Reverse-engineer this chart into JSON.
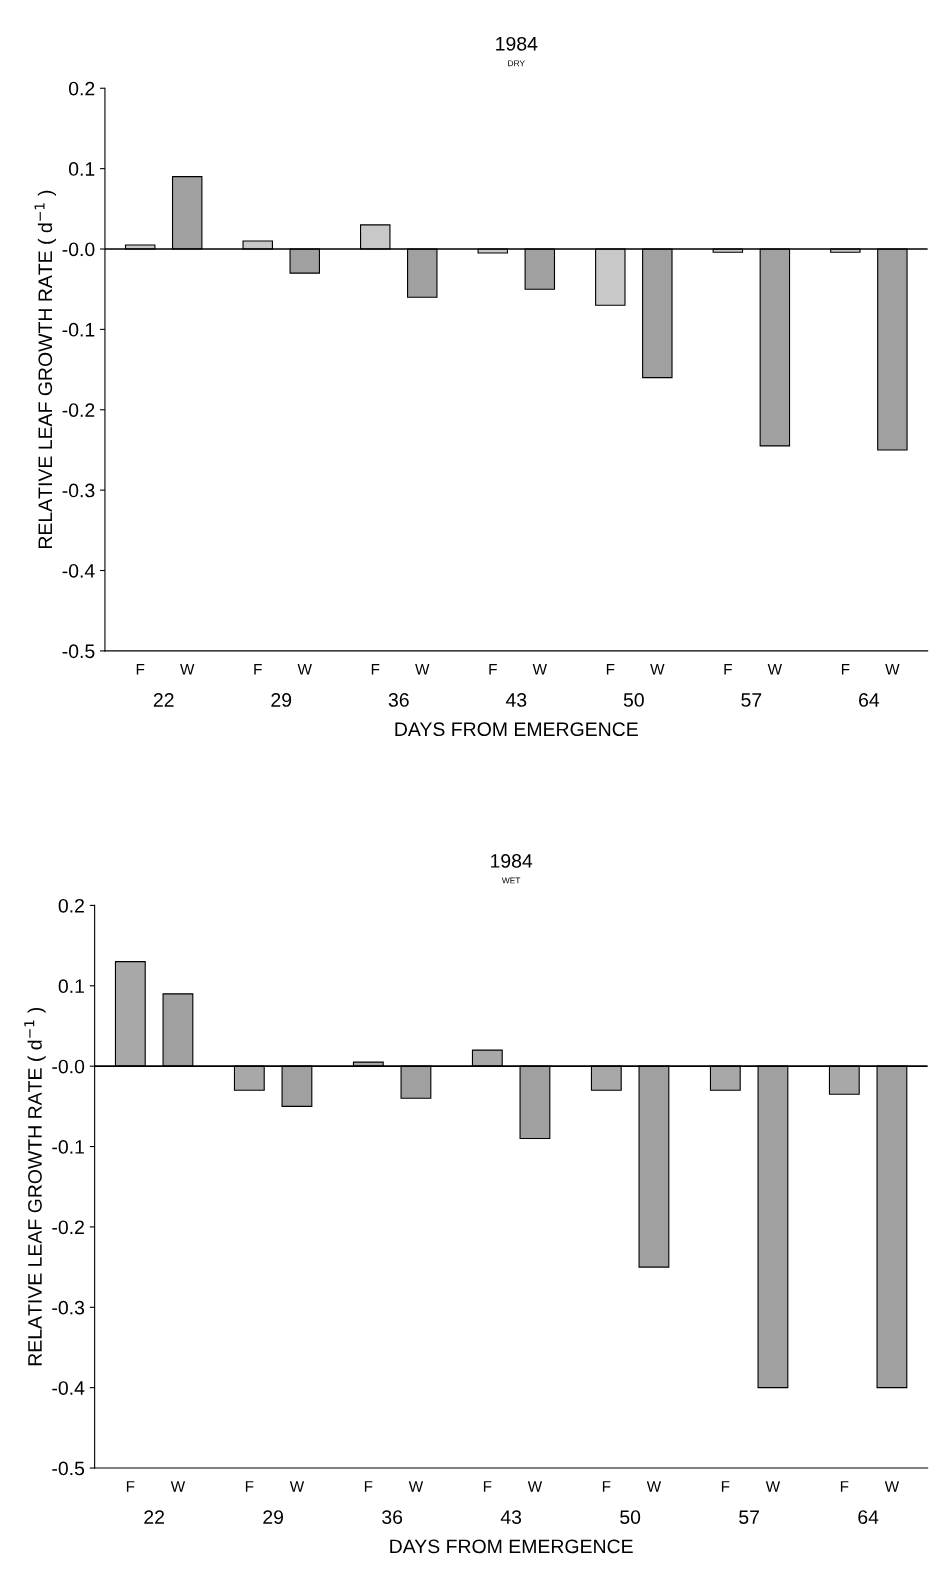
{
  "chart_data": [
    {
      "type": "bar",
      "title": "1984",
      "subtitle": "DRY",
      "xlabel": "DAYS FROM EMERGENCE",
      "ylabel": "RELATIVE LEAF GROWTH RATE ( d$^{−1}$ )",
      "categories": [
        "22",
        "29",
        "36",
        "43",
        "50",
        "57",
        "64"
      ],
      "series": [
        {
          "name": "F",
          "color": "#c8c8c8",
          "values": [
            0.005,
            0.01,
            0.03,
            -0.005,
            -0.07,
            -0.004,
            -0.004
          ]
        },
        {
          "name": "W",
          "color": "#a0a0a0",
          "values": [
            0.09,
            -0.03,
            -0.06,
            -0.05,
            -0.16,
            -0.245,
            -0.25
          ]
        }
      ],
      "ylim": [
        -0.5,
        0.2
      ],
      "yticks": [
        -0.5,
        -0.4,
        -0.3,
        -0.2,
        -0.1,
        {
          "value": 0,
          "label": "-0.0"
        },
        0.1,
        0.2
      ],
      "ref_lines": [
        {
          "axis": "y",
          "value": 0
        }
      ],
      "grid": false,
      "legend": false
    },
    {
      "type": "bar",
      "title": "1984",
      "subtitle": "WET",
      "xlabel": "DAYS FROM EMERGENCE",
      "ylabel": "RELATIVE LEAF GROWTH RATE ( d$^{−1}$ )",
      "categories": [
        "22",
        "29",
        "36",
        "43",
        "50",
        "57",
        "64"
      ],
      "series": [
        {
          "name": "F",
          "color": "#a8a8a8",
          "values": [
            0.13,
            -0.03,
            0.005,
            0.02,
            -0.03,
            -0.03,
            -0.035
          ]
        },
        {
          "name": "W",
          "color": "#a0a0a0",
          "values": [
            0.09,
            -0.05,
            -0.04,
            -0.09,
            -0.25,
            -0.4,
            -0.4
          ]
        }
      ],
      "ylim": [
        -0.5,
        0.2
      ],
      "yticks": [
        -0.5,
        -0.4,
        -0.3,
        -0.2,
        -0.1,
        {
          "value": 0,
          "label": "-0.0"
        },
        0.1,
        0.2
      ],
      "ref_lines": [
        {
          "axis": "y",
          "value": 0
        }
      ],
      "grid": false,
      "legend": false
    }
  ]
}
